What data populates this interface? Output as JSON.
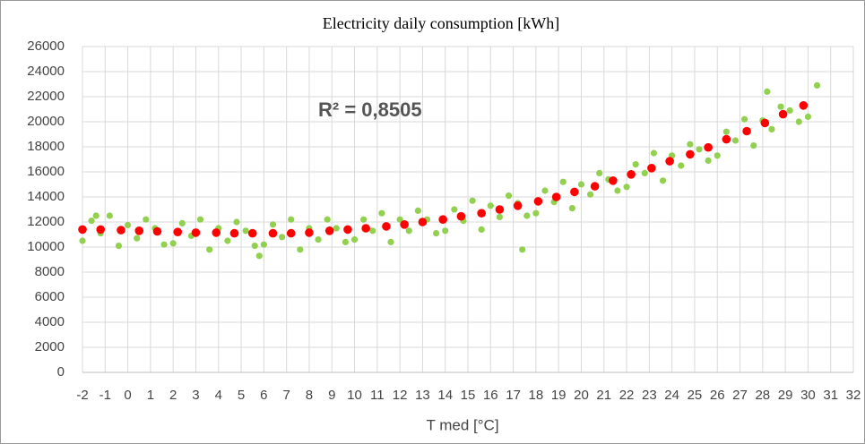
{
  "chart_data": {
    "type": "scatter",
    "title": "Electricity daily consumption [kWh]",
    "xlabel": "T med [°C]",
    "annotation": "R² = 0,8505",
    "xlim": [
      -2,
      32
    ],
    "xticks": [
      -2,
      -1,
      0,
      1,
      2,
      3,
      4,
      5,
      6,
      7,
      8,
      9,
      10,
      11,
      12,
      13,
      14,
      15,
      16,
      17,
      18,
      19,
      20,
      21,
      22,
      23,
      24,
      25,
      26,
      27,
      28,
      29,
      30,
      31,
      32
    ],
    "ylim": [
      0,
      26000
    ],
    "yticks": [
      0,
      2000,
      4000,
      6000,
      8000,
      10000,
      12000,
      14000,
      16000,
      18000,
      20000,
      22000,
      24000,
      26000
    ],
    "grid": true,
    "series": [
      {
        "color": "#92d050",
        "x": [
          -2.0,
          -1.6,
          -1.2,
          -0.8,
          -0.4,
          0.0,
          0.4,
          0.8,
          1.2,
          1.6,
          2.0,
          2.4,
          2.8,
          3.2,
          3.6,
          4.0,
          4.4,
          4.8,
          5.2,
          5.6,
          6.0,
          6.4,
          6.8,
          7.2,
          7.6,
          8.0,
          8.4,
          8.8,
          9.2,
          9.6,
          10.0,
          10.4,
          10.8,
          11.2,
          11.6,
          12.0,
          12.4,
          12.8,
          13.2,
          13.6,
          14.0,
          14.4,
          14.8,
          15.2,
          15.6,
          16.0,
          16.4,
          16.8,
          17.2,
          17.6,
          18.0,
          18.4,
          18.8,
          19.2,
          19.6,
          20.0,
          20.4,
          20.8,
          21.2,
          21.6,
          22.0,
          22.4,
          22.8,
          23.2,
          23.6,
          24.0,
          24.4,
          24.8,
          25.2,
          25.6,
          26.0,
          26.4,
          26.8,
          27.2,
          27.6,
          28.0,
          28.4,
          28.8,
          29.2,
          29.6,
          30.0,
          30.4,
          28.2,
          17.4,
          5.8,
          -1.4
        ],
        "values": [
          10500,
          12100,
          11100,
          12500,
          10100,
          11750,
          10700,
          12200,
          11500,
          10200,
          10300,
          11900,
          10900,
          12200,
          9800,
          11500,
          10500,
          12000,
          11300,
          10100,
          10200,
          11800,
          10800,
          12200,
          9800,
          11500,
          10600,
          12200,
          11500,
          10400,
          10600,
          12200,
          11300,
          12700,
          10400,
          12200,
          11300,
          12900,
          12200,
          11100,
          11300,
          13000,
          12100,
          13700,
          11400,
          13300,
          12400,
          14100,
          13500,
          12500,
          12700,
          14500,
          13600,
          15200,
          13100,
          15000,
          14200,
          15900,
          15400,
          14500,
          14800,
          16600,
          15900,
          17500,
          15300,
          17300,
          16500,
          18200,
          17800,
          16900,
          17300,
          19200,
          18500,
          20200,
          18100,
          20100,
          19400,
          21200,
          20900,
          20000,
          20400,
          22900,
          22400,
          9800,
          9300,
          12500
        ]
      },
      {
        "color": "#ff0000",
        "x": [
          -2.0,
          -1.2,
          -0.3,
          0.5,
          1.3,
          2.2,
          3.0,
          3.9,
          4.7,
          5.5,
          6.4,
          7.2,
          8.0,
          8.9,
          9.7,
          10.5,
          11.4,
          12.2,
          13.0,
          13.9,
          14.7,
          15.6,
          16.4,
          17.2,
          18.1,
          18.9,
          19.7,
          20.6,
          21.4,
          22.2,
          23.1,
          23.9,
          24.8,
          25.6,
          26.4,
          27.3,
          28.1,
          28.9,
          29.8
        ],
        "values": [
          11400,
          11400,
          11350,
          11300,
          11250,
          11200,
          11150,
          11150,
          11100,
          11100,
          11100,
          11100,
          11150,
          11300,
          11400,
          11500,
          11650,
          11800,
          12000,
          12200,
          12450,
          12700,
          13000,
          13300,
          13650,
          14000,
          14400,
          14850,
          15300,
          15800,
          16300,
          16850,
          17400,
          17950,
          18600,
          19250,
          19900,
          20600,
          21300
        ]
      }
    ]
  }
}
